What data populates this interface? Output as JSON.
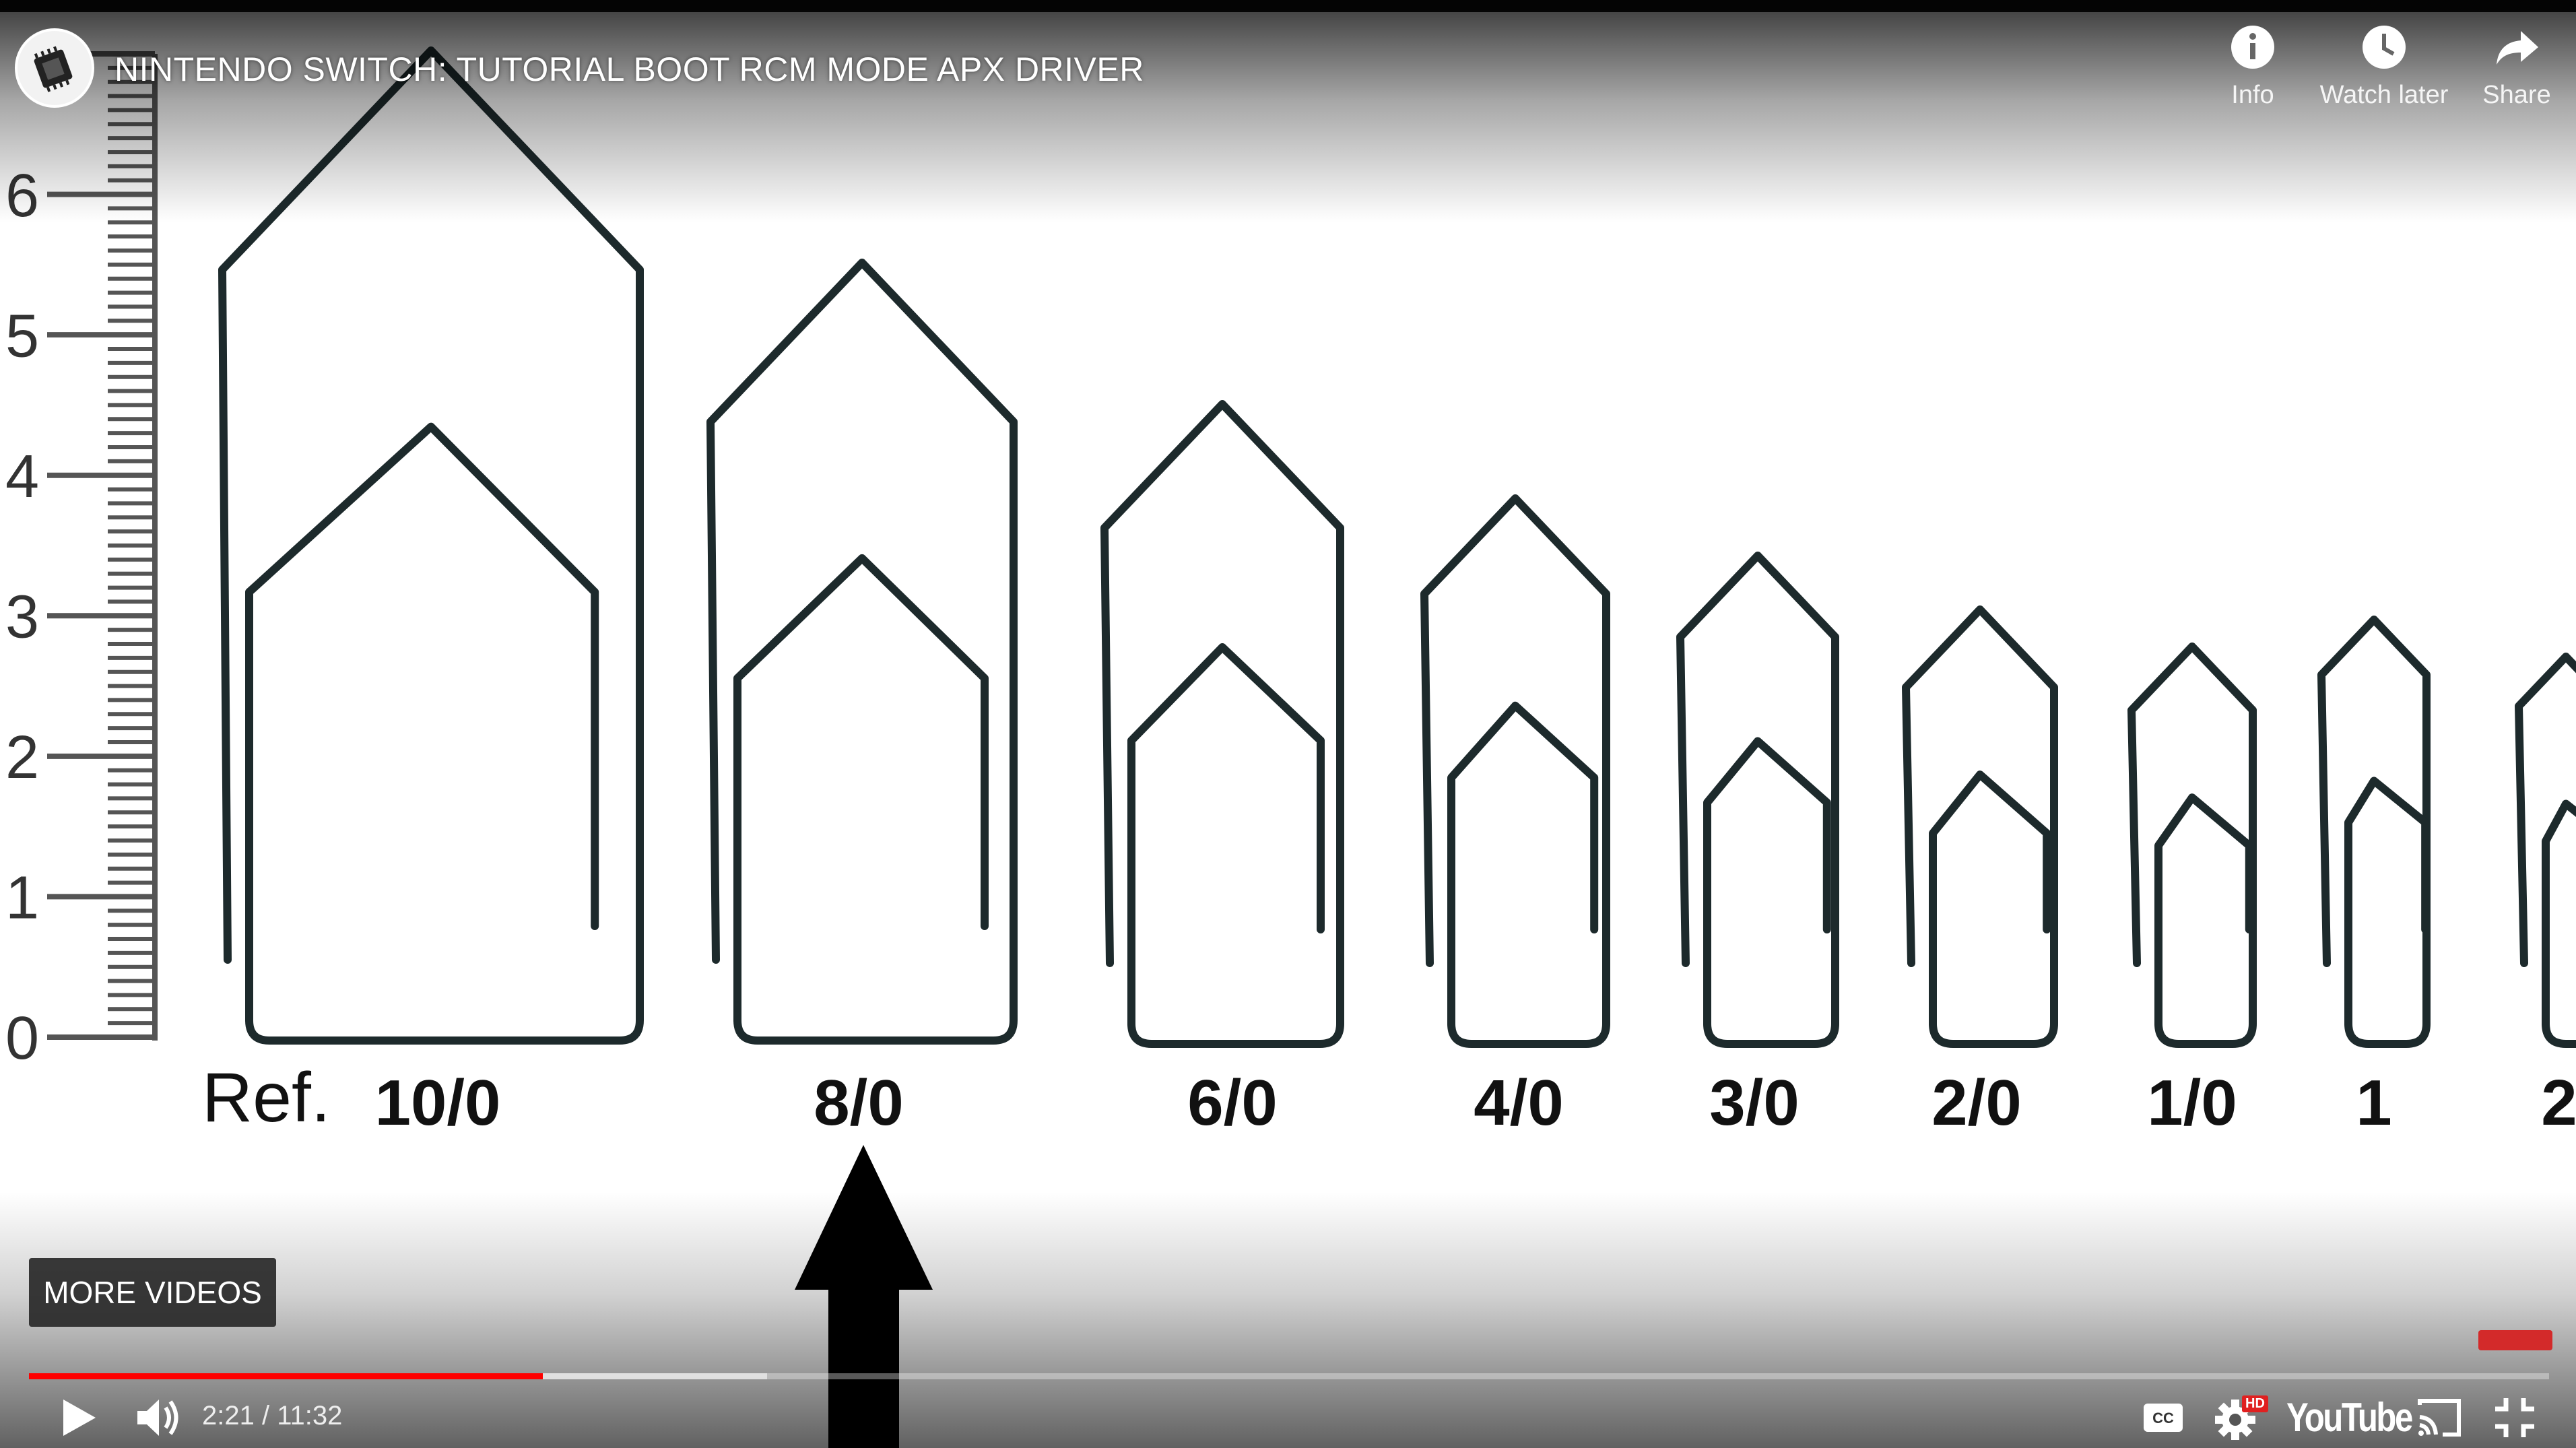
{
  "video": {
    "title": "NINTENDO SWITCH: TUTORIAL BOOT RCM MODE APX DRIVER",
    "frame": {
      "ruler_labels": [
        "6",
        "5",
        "4",
        "3",
        "2",
        "1",
        "0"
      ],
      "ref_label": "Ref.",
      "clip_labels": [
        "10/0",
        "8/0",
        "6/0",
        "4/0",
        "3/0",
        "2/0",
        "1/0",
        "1",
        "2"
      ]
    }
  },
  "top_actions": {
    "info_label": "Info",
    "watch_later_label": "Watch later",
    "share_label": "Share"
  },
  "overlay": {
    "more_videos_label": "MORE VIDEOS"
  },
  "controls": {
    "current_time": "2:21",
    "separator": " / ",
    "duration": "11:32",
    "progress_fraction": 0.204,
    "buffered_fraction": 0.293,
    "hd_badge": "HD",
    "logo_text": "YouTube"
  },
  "icons": [
    "channel-avatar",
    "info-icon",
    "clock-icon",
    "share-icon",
    "play-icon",
    "volume-icon",
    "cc-icon",
    "settings-icon",
    "youtube-logo",
    "cast-icon",
    "exit-fullscreen-icon"
  ],
  "colors": {
    "progress_played": "#ff0000",
    "hd_badge": "#e02020"
  }
}
